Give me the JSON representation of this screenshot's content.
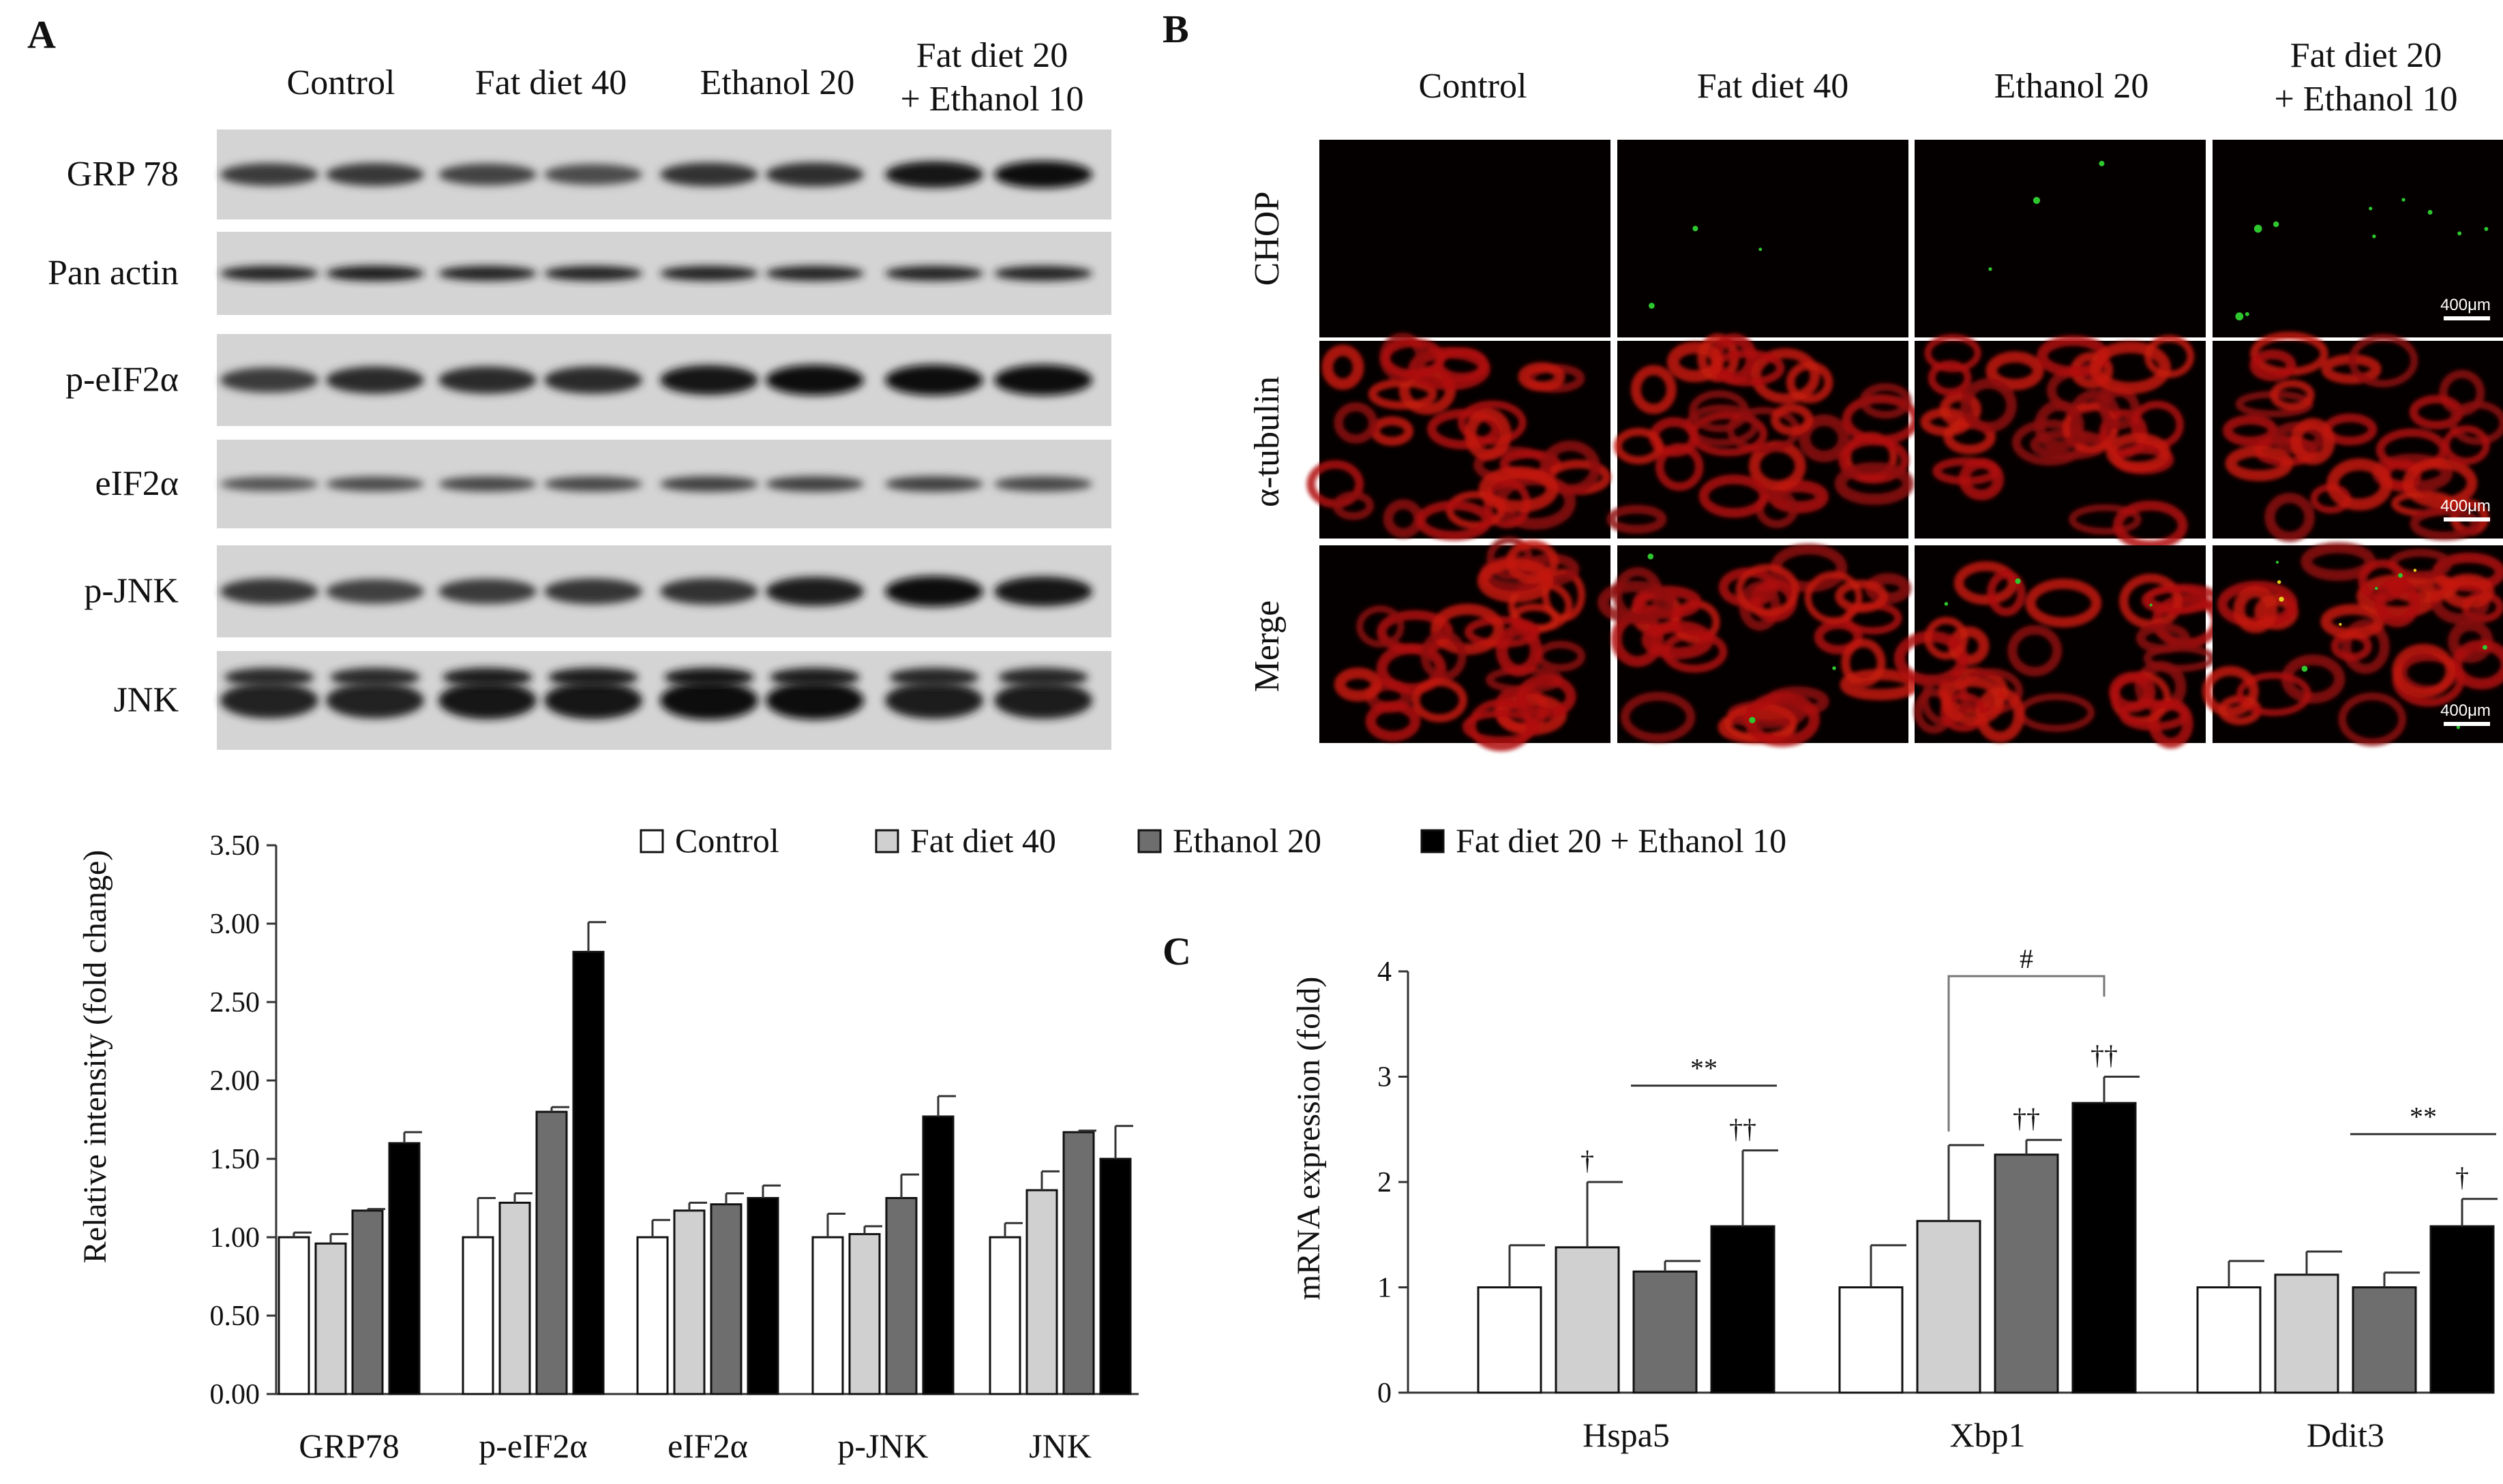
{
  "panel_a": {
    "letter": "A",
    "headers": [
      "Control",
      "Fat diet 40",
      "Ethanol 20",
      "Fat diet 20",
      "+ Ethanol 10"
    ],
    "blots": [
      {
        "label": "GRP 78",
        "intensities": [
          0.55,
          0.58,
          0.48,
          0.4,
          0.65,
          0.68,
          0.9,
          0.95
        ]
      },
      {
        "label": "Pan actin",
        "intensities": [
          0.8,
          0.85,
          0.8,
          0.8,
          0.8,
          0.8,
          0.8,
          0.8
        ]
      },
      {
        "label": "p-eIF2α",
        "intensities": [
          0.55,
          0.7,
          0.7,
          0.72,
          0.9,
          0.95,
          0.98,
          0.98
        ]
      },
      {
        "label": "eIF2α",
        "intensities": [
          0.35,
          0.4,
          0.45,
          0.45,
          0.5,
          0.5,
          0.5,
          0.45
        ]
      },
      {
        "label": "p-JNK",
        "intensities": [
          0.6,
          0.5,
          0.55,
          0.6,
          0.65,
          0.85,
          0.98,
          0.9
        ]
      },
      {
        "label": "JNK",
        "intensities": [
          0.8,
          0.8,
          0.9,
          0.9,
          0.98,
          0.95,
          0.85,
          0.85
        ]
      }
    ]
  },
  "panel_b": {
    "letter": "B",
    "headers": [
      "Control",
      "Fat diet 40",
      "Ethanol 20",
      "Fat diet 20",
      "+ Ethanol 10"
    ],
    "rows": [
      "CHOP",
      "α-tubulin",
      "Merge"
    ],
    "scale_label": "400μm"
  },
  "legend": [
    "Control",
    "Fat diet 40",
    "Ethanol 20",
    "Fat diet 20 + Ethanol 10"
  ],
  "colors": {
    "control": "#ffffff",
    "fat": "#d0d0d0",
    "ethanol": "#6e6e6e",
    "combo": "#000000"
  },
  "chart_data": [
    {
      "type": "bar",
      "categories": [
        "GRP78",
        "p-eIF2α",
        "eIF2α",
        "p-JNK",
        "JNK"
      ],
      "series": [
        {
          "name": "Control",
          "values": [
            1.0,
            1.0,
            1.0,
            1.0,
            1.0
          ],
          "errors": [
            0.03,
            0.25,
            0.11,
            0.15,
            0.09
          ]
        },
        {
          "name": "Fat diet 40",
          "values": [
            0.96,
            1.22,
            1.17,
            1.02,
            1.3
          ],
          "errors": [
            0.06,
            0.06,
            0.05,
            0.05,
            0.12
          ]
        },
        {
          "name": "Ethanol 20",
          "values": [
            1.17,
            1.8,
            1.21,
            1.25,
            1.67
          ],
          "errors": [
            0.01,
            0.03,
            0.07,
            0.15,
            0.01
          ]
        },
        {
          "name": "Fat diet 20 + Ethanol 10",
          "values": [
            1.6,
            2.82,
            1.25,
            1.77,
            1.5
          ],
          "errors": [
            0.07,
            0.19,
            0.08,
            0.13,
            0.21
          ]
        }
      ],
      "ylabel": "Relative intensity (fold change)",
      "yticks": [
        "0.00",
        "0.50",
        "1.00",
        "1.50",
        "2.00",
        "2.50",
        "3.00",
        "3.50"
      ],
      "ylim": [
        0,
        3.5
      ]
    },
    {
      "type": "bar",
      "panel_letter": "C",
      "categories": [
        "Hspa5",
        "Xbp1",
        "Ddit3"
      ],
      "series": [
        {
          "name": "Control",
          "values": [
            1.0,
            1.0,
            1.0
          ],
          "errors": [
            0.4,
            0.4,
            0.25
          ]
        },
        {
          "name": "Fat diet 40",
          "values": [
            1.38,
            1.63,
            1.12
          ],
          "errors": [
            0.62,
            0.72,
            0.22
          ]
        },
        {
          "name": "Ethanol 20",
          "values": [
            1.15,
            2.26,
            1.0
          ],
          "errors": [
            0.1,
            0.14,
            0.14
          ]
        },
        {
          "name": "Fat diet 20 + Ethanol 10",
          "values": [
            1.58,
            2.75,
            1.58
          ],
          "errors": [
            0.72,
            0.25,
            0.26
          ]
        }
      ],
      "ylabel": "mRNA expression (fold)",
      "yticks": [
        "0",
        "1",
        "2",
        "3",
        "4"
      ],
      "ylim": [
        0,
        4
      ],
      "annotations": [
        {
          "text": "†",
          "category": "Hspa5",
          "series": 1
        },
        {
          "text": "††",
          "category": "Hspa5",
          "series": 3
        },
        {
          "text": "**",
          "category": "Hspa5",
          "bracket": [
            2,
            3
          ]
        },
        {
          "text": "††",
          "category": "Xbp1",
          "series": 2
        },
        {
          "text": "††",
          "category": "Xbp1",
          "series": 3
        },
        {
          "text": "#",
          "category": "Xbp1",
          "bracket": [
            1,
            3
          ]
        },
        {
          "text": "†",
          "category": "Ddit3",
          "series": 3
        },
        {
          "text": "**",
          "category": "Ddit3",
          "bracket": [
            2,
            3
          ]
        }
      ]
    }
  ]
}
